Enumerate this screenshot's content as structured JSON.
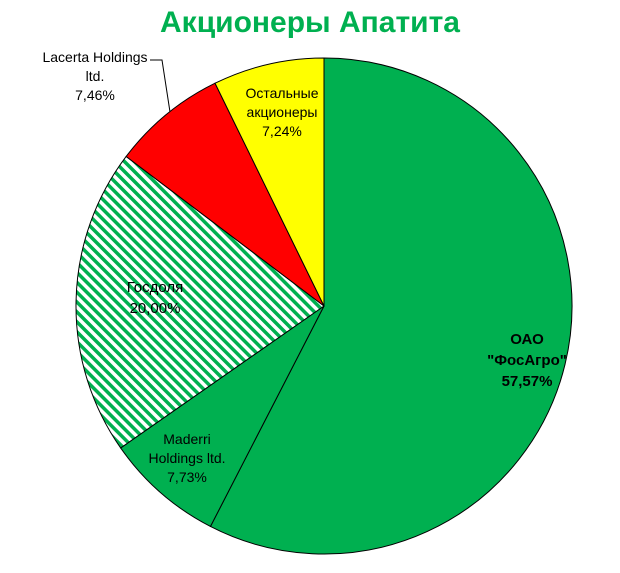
{
  "chart_data": {
    "type": "pie",
    "title": "Акционеры Апатита",
    "start_angle_deg": 0,
    "direction": "clockwise",
    "slices": [
      {
        "lines": [
          "ОАО",
          "\"ФосАгро\"",
          "57,57%"
        ],
        "value": 57.57,
        "color": "#00b050",
        "pattern": "solid"
      },
      {
        "lines": [
          "Maderri",
          "Holdings  ltd.",
          "7,73%"
        ],
        "value": 7.73,
        "color": "#00b050",
        "pattern": "solid"
      },
      {
        "lines": [
          "Госдоля",
          "20,00%"
        ],
        "value": 20.0,
        "color": "#00b050",
        "pattern": "diagonal-stripes"
      },
      {
        "lines": [
          "Lacerta Holdings",
          "ltd.",
          "7,46%"
        ],
        "value": 7.46,
        "color": "#ff0000",
        "pattern": "solid"
      },
      {
        "lines": [
          "Остальные",
          "акционеры",
          "7,24%"
        ],
        "value": 7.24,
        "color": "#ffff00",
        "pattern": "solid"
      }
    ],
    "title_color": "#00b050",
    "legend": "none"
  }
}
